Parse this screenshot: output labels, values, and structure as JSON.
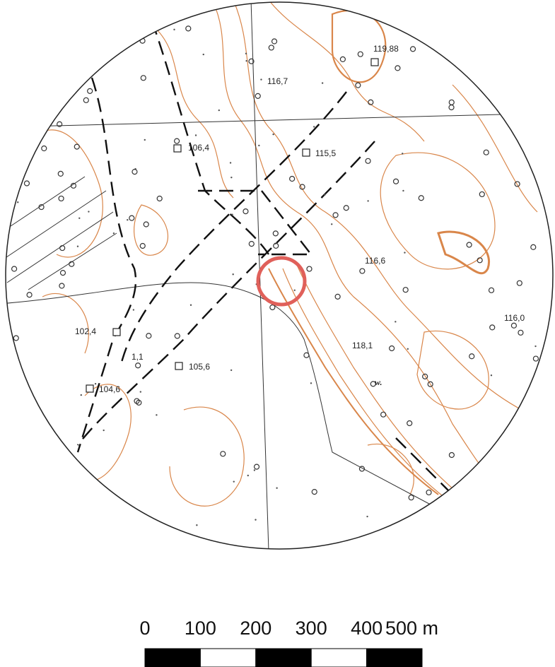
{
  "map": {
    "labels": [
      "119,88",
      "116,7",
      "106,4",
      "115,5",
      "116,6",
      "116,0",
      "102,4",
      "1,1",
      "118,1",
      "105,6",
      "104,6",
      "w."
    ]
  },
  "scale": {
    "labels": [
      "0",
      "100",
      "200",
      "300",
      "400",
      "500 m"
    ]
  }
}
